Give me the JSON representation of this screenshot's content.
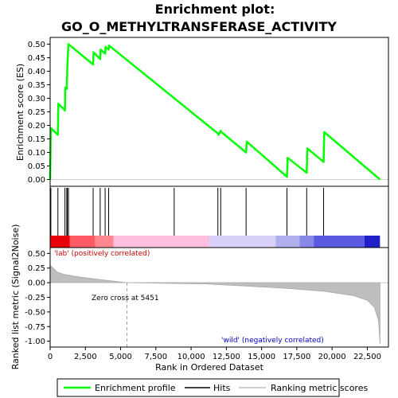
{
  "chart_data": {
    "type": "line",
    "title_line1": "Enrichment plot:",
    "title_line2": "GO_O_METHYLTRANSFERASE_ACTIVITY",
    "xlabel": "Rank in Ordered Dataset",
    "es_ylabel": "Enrichment score (ES)",
    "metric_ylabel": "Ranked list metric (Signal2Noise)",
    "xlim": [
      0,
      24000
    ],
    "es_ylim": [
      -0.025,
      0.525
    ],
    "metric_ylim": [
      -1.1,
      0.6
    ],
    "x_ticks": [
      0,
      2500,
      5000,
      7500,
      10000,
      12500,
      15000,
      17500,
      20000,
      22500
    ],
    "x_tick_labels": [
      "0",
      "2,500",
      "5,000",
      "7,500",
      "10,000",
      "12,500",
      "15,000",
      "17,500",
      "20,000",
      "22,500"
    ],
    "es_ticks": [
      0.0,
      0.05,
      0.1,
      0.15,
      0.2,
      0.25,
      0.3,
      0.35,
      0.4,
      0.45,
      0.5
    ],
    "es_tick_labels": [
      "0.00",
      "0.05",
      "0.10",
      "0.15",
      "0.20",
      "0.25",
      "0.30",
      "0.35",
      "0.40",
      "0.45",
      "0.50"
    ],
    "metric_ticks": [
      0.5,
      0.25,
      0.0,
      -0.25,
      -0.5,
      -0.75,
      -1.0
    ],
    "metric_tick_labels": [
      "0.50",
      "0.25",
      "0.00",
      "-0.25",
      "-0.50",
      "-0.75",
      "-1.00"
    ],
    "es_series": {
      "name": "Enrichment profile",
      "color": "#00ff00",
      "x": [
        0,
        50,
        550,
        580,
        1050,
        1080,
        1180,
        1220,
        1300,
        3050,
        3080,
        3550,
        3580,
        3900,
        3930,
        4150,
        4180,
        11900,
        11950,
        12100,
        12150,
        13900,
        13950,
        16800,
        16850,
        18200,
        18250,
        19400,
        19450,
        23400
      ],
      "y": [
        0.0,
        0.19,
        0.165,
        0.28,
        0.255,
        0.34,
        0.335,
        0.42,
        0.5,
        0.425,
        0.47,
        0.445,
        0.48,
        0.465,
        0.49,
        0.48,
        0.495,
        0.17,
        0.165,
        0.18,
        0.175,
        0.1,
        0.14,
        0.01,
        0.08,
        0.025,
        0.115,
        0.065,
        0.175,
        0.0
      ]
    },
    "hits": [
      50,
      550,
      1050,
      1180,
      1220,
      1300,
      3050,
      3550,
      3900,
      4150,
      8800,
      11900,
      12100,
      13900,
      16800,
      18200,
      19400
    ],
    "hits_color": "#000000",
    "hits_label": "Hits",
    "metric_series": {
      "name": "Ranking metric scores",
      "color": "#bebebe",
      "x": [
        0,
        500,
        1000,
        2000,
        3000,
        4000,
        5451,
        8000,
        11000,
        14000,
        17000,
        19500,
        21500,
        22500,
        23000,
        23300,
        23400
      ],
      "y": [
        0.3,
        0.18,
        0.14,
        0.1,
        0.07,
        0.04,
        0.0,
        -0.01,
        -0.02,
        -0.06,
        -0.1,
        -0.15,
        -0.22,
        -0.3,
        -0.42,
        -0.65,
        -1.05
      ]
    },
    "heatmap_bands": [
      {
        "x0": 0,
        "x1": 1400,
        "color": "#e8000a"
      },
      {
        "x0": 1400,
        "x1": 3200,
        "color": "#ff5a64"
      },
      {
        "x0": 3200,
        "x1": 4500,
        "color": "#ff8890"
      },
      {
        "x0": 4500,
        "x1": 11300,
        "color": "#ffc0e0"
      },
      {
        "x0": 11300,
        "x1": 16000,
        "color": "#d8d0f8"
      },
      {
        "x0": 16000,
        "x1": 17700,
        "color": "#b0b0ee"
      },
      {
        "x0": 17700,
        "x1": 18700,
        "color": "#8888e8"
      },
      {
        "x0": 18700,
        "x1": 22300,
        "color": "#5a5ae0"
      },
      {
        "x0": 22300,
        "x1": 23400,
        "color": "#2020c8"
      }
    ],
    "annotations": {
      "positive": "'lab' (positively correlated)",
      "positive_color": "#cc0000",
      "negative": "'wild' (negatively correlated)",
      "negative_color": "#0000cc",
      "zero_cross": "Zero cross at 5451",
      "zero_cross_x": 5451
    },
    "legend": {
      "placement": "bottom",
      "items": [
        "Enrichment profile",
        "Hits",
        "Ranking metric scores"
      ]
    }
  }
}
